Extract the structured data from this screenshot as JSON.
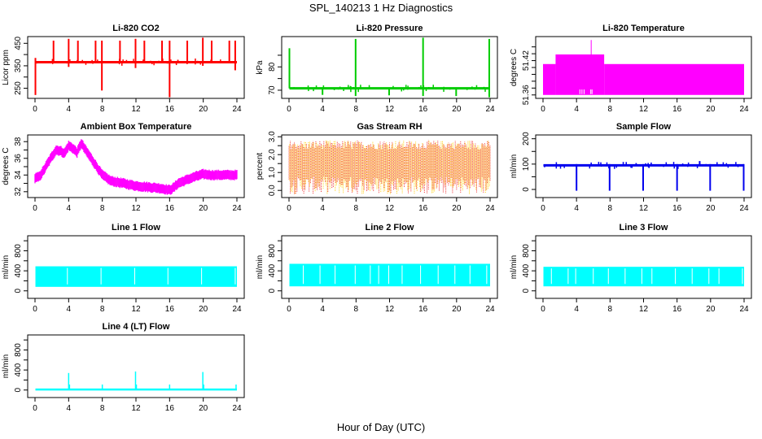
{
  "figure": {
    "title": "SPL_140213  1 Hz Diagnostics",
    "xlabel": "Hour of Day (UTC)"
  },
  "chart_data": [
    {
      "id": "co2",
      "type": "line",
      "title": "Li-820 CO2",
      "ylabel": "Licor ppm",
      "color": "#ff0000",
      "xlim": [
        0,
        24
      ],
      "x_ticks": [
        0,
        4,
        8,
        12,
        16,
        20,
        24
      ],
      "ylim": [
        205,
        480
      ],
      "y_ticks": [
        250,
        300,
        350,
        400,
        450
      ],
      "y_tick_labels": [
        "250",
        "",
        "350",
        "",
        "450"
      ],
      "baseline": 366,
      "events": [
        {
          "x": 0.05,
          "low": 220,
          "high": 385
        },
        {
          "x": 2.2,
          "low": 366,
          "high": 462
        },
        {
          "x": 4.0,
          "low": 345,
          "high": 470
        },
        {
          "x": 5.1,
          "low": 366,
          "high": 462
        },
        {
          "x": 7.2,
          "low": 366,
          "high": 462
        },
        {
          "x": 7.95,
          "low": 240,
          "high": 462
        },
        {
          "x": 10.1,
          "low": 366,
          "high": 462
        },
        {
          "x": 11.95,
          "low": 340,
          "high": 470
        },
        {
          "x": 13.0,
          "low": 366,
          "high": 462
        },
        {
          "x": 15.1,
          "low": 366,
          "high": 462
        },
        {
          "x": 16.0,
          "low": 210,
          "high": 462
        },
        {
          "x": 18.1,
          "low": 366,
          "high": 462
        },
        {
          "x": 19.95,
          "low": 350,
          "high": 475
        },
        {
          "x": 21.0,
          "low": 366,
          "high": 462
        },
        {
          "x": 23.1,
          "low": 366,
          "high": 462
        },
        {
          "x": 23.8,
          "low": 330,
          "high": 462
        }
      ]
    },
    {
      "id": "pressure",
      "type": "line",
      "title": "Li-820 Pressure",
      "ylabel": "kPa",
      "color": "#00cc00",
      "xlim": [
        0,
        24
      ],
      "x_ticks": [
        0,
        4,
        8,
        12,
        16,
        20,
        24
      ],
      "ylim": [
        66.5,
        93
      ],
      "y_ticks": [
        70,
        75,
        80,
        85
      ],
      "y_tick_labels": [
        "70",
        "",
        "80",
        ""
      ],
      "baseline": 70.8,
      "events": [
        {
          "x": 0.05,
          "low": 70.8,
          "high": 88
        },
        {
          "x": 4.0,
          "low": 68,
          "high": 71
        },
        {
          "x": 7.95,
          "low": 67.5,
          "high": 92
        },
        {
          "x": 11.95,
          "low": 67.8,
          "high": 71
        },
        {
          "x": 16.0,
          "low": 67.5,
          "high": 92.5
        },
        {
          "x": 19.95,
          "low": 67.5,
          "high": 71
        },
        {
          "x": 23.9,
          "low": 67.0,
          "high": 92
        }
      ]
    },
    {
      "id": "li820_temp",
      "type": "area",
      "title": "Li-820 Temperature",
      "ylabel": "degrees C",
      "color": "#ff00ff",
      "xlim": [
        0,
        24
      ],
      "x_ticks": [
        0,
        4,
        8,
        12,
        16,
        20,
        24
      ],
      "ylim": [
        51.355,
        51.445
      ],
      "y_ticks": [
        51.36,
        51.37,
        51.38,
        51.39,
        51.4,
        51.41,
        51.42,
        51.43
      ],
      "y_tick_labels": [
        "51.36",
        "",
        "",
        "",
        "",
        "51.42",
        "",
        ""
      ],
      "floor": 51.36,
      "segments": [
        {
          "x0": 0,
          "x1": 1.5,
          "top": 51.405
        },
        {
          "x0": 1.5,
          "x1": 7.3,
          "top": 51.419
        },
        {
          "x0": 7.3,
          "x1": 24,
          "top": 51.405
        }
      ],
      "spike": {
        "x": 5.75,
        "top": 51.44
      }
    },
    {
      "id": "ambient_temp",
      "type": "line",
      "title": "Ambient Box Temperature",
      "ylabel": "degrees C",
      "color": "#ff00ff",
      "xlim": [
        0,
        24
      ],
      "x_ticks": [
        0,
        4,
        8,
        12,
        16,
        20,
        24
      ],
      "ylim": [
        31.3,
        38.8
      ],
      "y_ticks": [
        32,
        33,
        34,
        35,
        36,
        37,
        38
      ],
      "y_tick_labels": [
        "32",
        "",
        "34",
        "",
        "36",
        "",
        "38"
      ],
      "x": [
        0,
        0.5,
        1,
        1.5,
        2,
        2.5,
        3,
        3.5,
        4,
        4.5,
        5,
        5.5,
        6,
        7,
        8,
        9,
        10,
        11,
        12,
        13,
        14,
        15,
        16,
        16.5,
        17,
        18,
        19,
        20,
        21,
        22,
        23,
        24
      ],
      "y": [
        33.6,
        33.8,
        34.5,
        35.4,
        36.2,
        37.0,
        36.9,
        36.6,
        37.5,
        37.2,
        36.7,
        37.8,
        37.0,
        35.5,
        34.0,
        33.3,
        33.1,
        32.9,
        32.7,
        32.6,
        32.5,
        32.4,
        32.2,
        32.5,
        33.0,
        33.4,
        33.8,
        34.1,
        34.0,
        34.0,
        34.0,
        34.0
      ],
      "band": 0.55
    },
    {
      "id": "gas_rh",
      "type": "line",
      "title": "Gas Stream RH",
      "ylabel": "percent",
      "color": "#ffcc00",
      "color2": "#ee2222",
      "xlim": [
        0,
        24
      ],
      "x_ticks": [
        0,
        4,
        8,
        12,
        16,
        20,
        24
      ],
      "ylim": [
        -0.4,
        3.1
      ],
      "y_ticks": [
        0,
        0.5,
        1.0,
        1.5,
        2.0,
        2.5,
        3.0
      ],
      "y_tick_labels": [
        "0.0",
        "",
        "1.0",
        "",
        "2.0",
        "",
        "3.0"
      ],
      "range": [
        -0.2,
        2.8
      ],
      "typical": [
        0.5,
        2.3
      ]
    },
    {
      "id": "sample_flow",
      "type": "line",
      "title": "Sample Flow",
      "ylabel": "ml/min",
      "color": "#0000ee",
      "xlim": [
        0,
        24
      ],
      "x_ticks": [
        0,
        4,
        8,
        12,
        16,
        20,
        24
      ],
      "ylim": [
        -32,
        215
      ],
      "y_ticks": [
        0,
        50,
        100,
        150,
        200
      ],
      "y_tick_labels": [
        "0",
        "",
        "100",
        "",
        "200"
      ],
      "baseline": 95,
      "events": [
        {
          "x": 4.0,
          "low": -5,
          "high": 100
        },
        {
          "x": 7.95,
          "low": -5,
          "high": 100
        },
        {
          "x": 11.95,
          "low": -5,
          "high": 100
        },
        {
          "x": 16.0,
          "low": -5,
          "high": 100
        },
        {
          "x": 19.95,
          "low": -5,
          "high": 100
        },
        {
          "x": 23.95,
          "low": -5,
          "high": 100
        },
        {
          "x": 18.7,
          "low": 95,
          "high": 112
        }
      ]
    },
    {
      "id": "line1_flow",
      "type": "area",
      "title": "Line 1 Flow",
      "ylabel": "ml/min",
      "color": "#00ffff",
      "xlim": [
        0,
        24
      ],
      "x_ticks": [
        0,
        4,
        8,
        12,
        16,
        20,
        24
      ],
      "ylim": [
        -150,
        1100
      ],
      "y_ticks": [
        0,
        200,
        400,
        600,
        800,
        1000
      ],
      "y_tick_labels": [
        "0",
        "",
        "400",
        "",
        "800",
        ""
      ],
      "low": 80,
      "high": 490,
      "gaps": [
        3.85,
        7.85,
        11.85,
        15.8,
        19.8,
        23.8
      ]
    },
    {
      "id": "line2_flow",
      "type": "area",
      "title": "Line 2 Flow",
      "ylabel": "ml/min",
      "color": "#00ffff",
      "xlim": [
        0,
        24
      ],
      "x_ticks": [
        0,
        4,
        8,
        12,
        16,
        20,
        24
      ],
      "ylim": [
        -150,
        1100
      ],
      "y_ticks": [
        0,
        200,
        400,
        600,
        800,
        1000
      ],
      "y_tick_labels": [
        "0",
        "",
        "400",
        "",
        "800",
        ""
      ],
      "low": 90,
      "high": 540,
      "gaps": [
        1.7,
        3.7,
        5.5,
        7.9,
        9.7,
        10.7,
        11.9,
        13.5,
        15.7,
        17.8,
        19.8,
        21.6,
        23.6
      ]
    },
    {
      "id": "line3_flow",
      "type": "area",
      "title": "Line 3 Flow",
      "ylabel": "ml/min",
      "color": "#00ffff",
      "xlim": [
        0,
        24
      ],
      "x_ticks": [
        0,
        4,
        8,
        12,
        16,
        20,
        24
      ],
      "ylim": [
        -150,
        1100
      ],
      "y_ticks": [
        0,
        200,
        400,
        600,
        800,
        1000
      ],
      "y_tick_labels": [
        "0",
        "",
        "400",
        "",
        "800",
        ""
      ],
      "low": 90,
      "high": 480,
      "gaps": [
        1.0,
        3.0,
        3.9,
        6.0,
        7.8,
        9.8,
        11.8,
        13.0,
        15.8,
        17.8,
        19.8,
        21.0,
        23.8
      ]
    },
    {
      "id": "line4_flow",
      "type": "line",
      "title": "Line 4 (LT) Flow",
      "ylabel": "ml/min",
      "color": "#00ffff",
      "xlim": [
        0,
        24
      ],
      "x_ticks": [
        0,
        4,
        8,
        12,
        16,
        20,
        24
      ],
      "ylim": [
        -150,
        1100
      ],
      "y_ticks": [
        0,
        200,
        400,
        600,
        800,
        1000
      ],
      "y_tick_labels": [
        "0",
        "",
        "400",
        "",
        "800",
        ""
      ],
      "baseline": 10,
      "events": [
        {
          "x": 4.0,
          "high": 340
        },
        {
          "x": 4.1,
          "high": 110
        },
        {
          "x": 8.0,
          "high": 110
        },
        {
          "x": 11.95,
          "high": 370
        },
        {
          "x": 12.05,
          "high": 110
        },
        {
          "x": 16.0,
          "high": 110
        },
        {
          "x": 19.95,
          "high": 360
        },
        {
          "x": 20.05,
          "high": 110
        },
        {
          "x": 23.9,
          "high": 110
        }
      ]
    }
  ]
}
